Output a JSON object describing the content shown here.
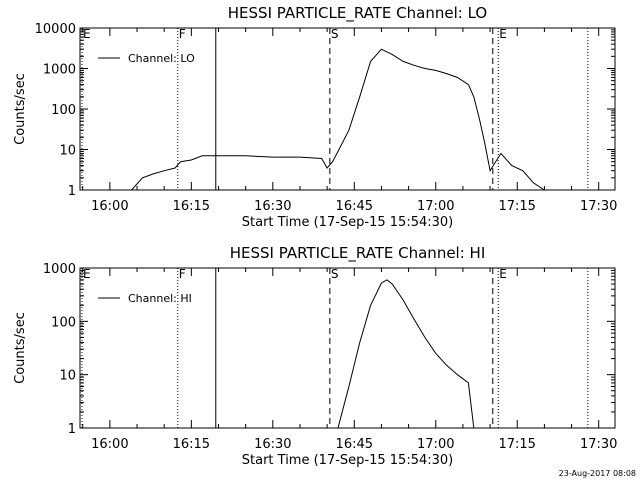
{
  "chart_data": [
    {
      "type": "line",
      "title": "HESSI PARTICLE_RATE Channel: LO",
      "xlabel": "Start Time (17-Sep-15 15:54:30)",
      "ylabel": "Counts/sec",
      "y_scale": "log",
      "ylim": [
        1,
        10000
      ],
      "x_range": [
        "15:54:30",
        "17:33:00"
      ],
      "x_ticks": [
        "16:00",
        "16:15",
        "16:30",
        "16:45",
        "17:00",
        "17:15",
        "17:30"
      ],
      "y_ticks": [
        "1",
        "10",
        "100",
        "1000",
        "10000"
      ],
      "legend": {
        "label": "Channel: LO",
        "placement": "top-left"
      },
      "grid": false,
      "markers": [
        {
          "label": "E",
          "time": "15:54:30",
          "style": "dotted"
        },
        {
          "label": "F",
          "time": "16:12:30",
          "style": "dotted"
        },
        {
          "label": "",
          "time": "16:19:30",
          "style": "solid"
        },
        {
          "label": "S",
          "time": "16:40:30",
          "style": "dashed"
        },
        {
          "label": "",
          "time": "17:10:30",
          "style": "dashed"
        },
        {
          "label": "E",
          "time": "17:11:30",
          "style": "dotted"
        },
        {
          "label": "",
          "time": "17:28:00",
          "style": "dotted"
        }
      ],
      "series": [
        {
          "name": "Channel: LO",
          "x": [
            "15:54:30",
            "16:04:00",
            "16:06:00",
            "16:08:00",
            "16:10:00",
            "16:12:00",
            "16:13:00",
            "16:15:00",
            "16:17:00",
            "16:20:00",
            "16:25:00",
            "16:30:00",
            "16:35:00",
            "16:39:00",
            "16:40:00",
            "16:41:00",
            "16:42:00",
            "16:44:00",
            "16:46:00",
            "16:48:00",
            "16:50:00",
            "16:52:00",
            "16:54:00",
            "16:56:00",
            "16:58:00",
            "17:00:00",
            "17:02:00",
            "17:04:00",
            "17:06:00",
            "17:07:00",
            "17:08:00",
            "17:09:00",
            "17:10:00",
            "17:12:00",
            "17:14:00",
            "17:16:00",
            "17:18:00",
            "17:20:00",
            "17:24:00",
            "17:28:00",
            "17:33:00"
          ],
          "y": [
            1,
            1,
            2,
            2.5,
            3,
            3.5,
            5,
            5.5,
            7,
            7,
            7,
            6.5,
            6.5,
            6,
            3.5,
            5,
            9,
            30,
            200,
            1500,
            3000,
            2200,
            1500,
            1200,
            1000,
            900,
            750,
            600,
            400,
            200,
            60,
            15,
            3,
            8,
            4,
            3,
            1.5,
            1,
            1,
            1,
            1
          ]
        }
      ]
    },
    {
      "type": "line",
      "title": "HESSI PARTICLE_RATE Channel: HI",
      "xlabel": "Start Time (17-Sep-15 15:54:30)",
      "ylabel": "Counts/sec",
      "y_scale": "log",
      "ylim": [
        1,
        1000
      ],
      "x_range": [
        "15:54:30",
        "17:33:00"
      ],
      "x_ticks": [
        "16:00",
        "16:15",
        "16:30",
        "16:45",
        "17:00",
        "17:15",
        "17:30"
      ],
      "y_ticks": [
        "1",
        "10",
        "100",
        "1000"
      ],
      "legend": {
        "label": "Channel: HI",
        "placement": "top-left"
      },
      "grid": false,
      "markers": [
        {
          "label": "E",
          "time": "15:54:30",
          "style": "dotted"
        },
        {
          "label": "F",
          "time": "16:12:30",
          "style": "dotted"
        },
        {
          "label": "",
          "time": "16:19:30",
          "style": "solid"
        },
        {
          "label": "S",
          "time": "16:40:30",
          "style": "dashed"
        },
        {
          "label": "",
          "time": "17:10:30",
          "style": "dashed"
        },
        {
          "label": "E",
          "time": "17:11:30",
          "style": "dotted"
        },
        {
          "label": "",
          "time": "17:28:00",
          "style": "dotted"
        }
      ],
      "series": [
        {
          "name": "Channel: HI",
          "x": [
            "16:42:00",
            "16:44:00",
            "16:46:00",
            "16:48:00",
            "16:50:00",
            "16:51:00",
            "16:52:00",
            "16:54:00",
            "16:56:00",
            "16:58:00",
            "17:00:00",
            "17:02:00",
            "17:04:00",
            "17:06:00",
            "17:07:00"
          ],
          "y": [
            1,
            6,
            40,
            200,
            520,
            600,
            500,
            250,
            110,
            50,
            25,
            15,
            10,
            7,
            1
          ]
        }
      ]
    }
  ],
  "footer": {
    "timestamp": "23-Aug-2017 08:08"
  }
}
